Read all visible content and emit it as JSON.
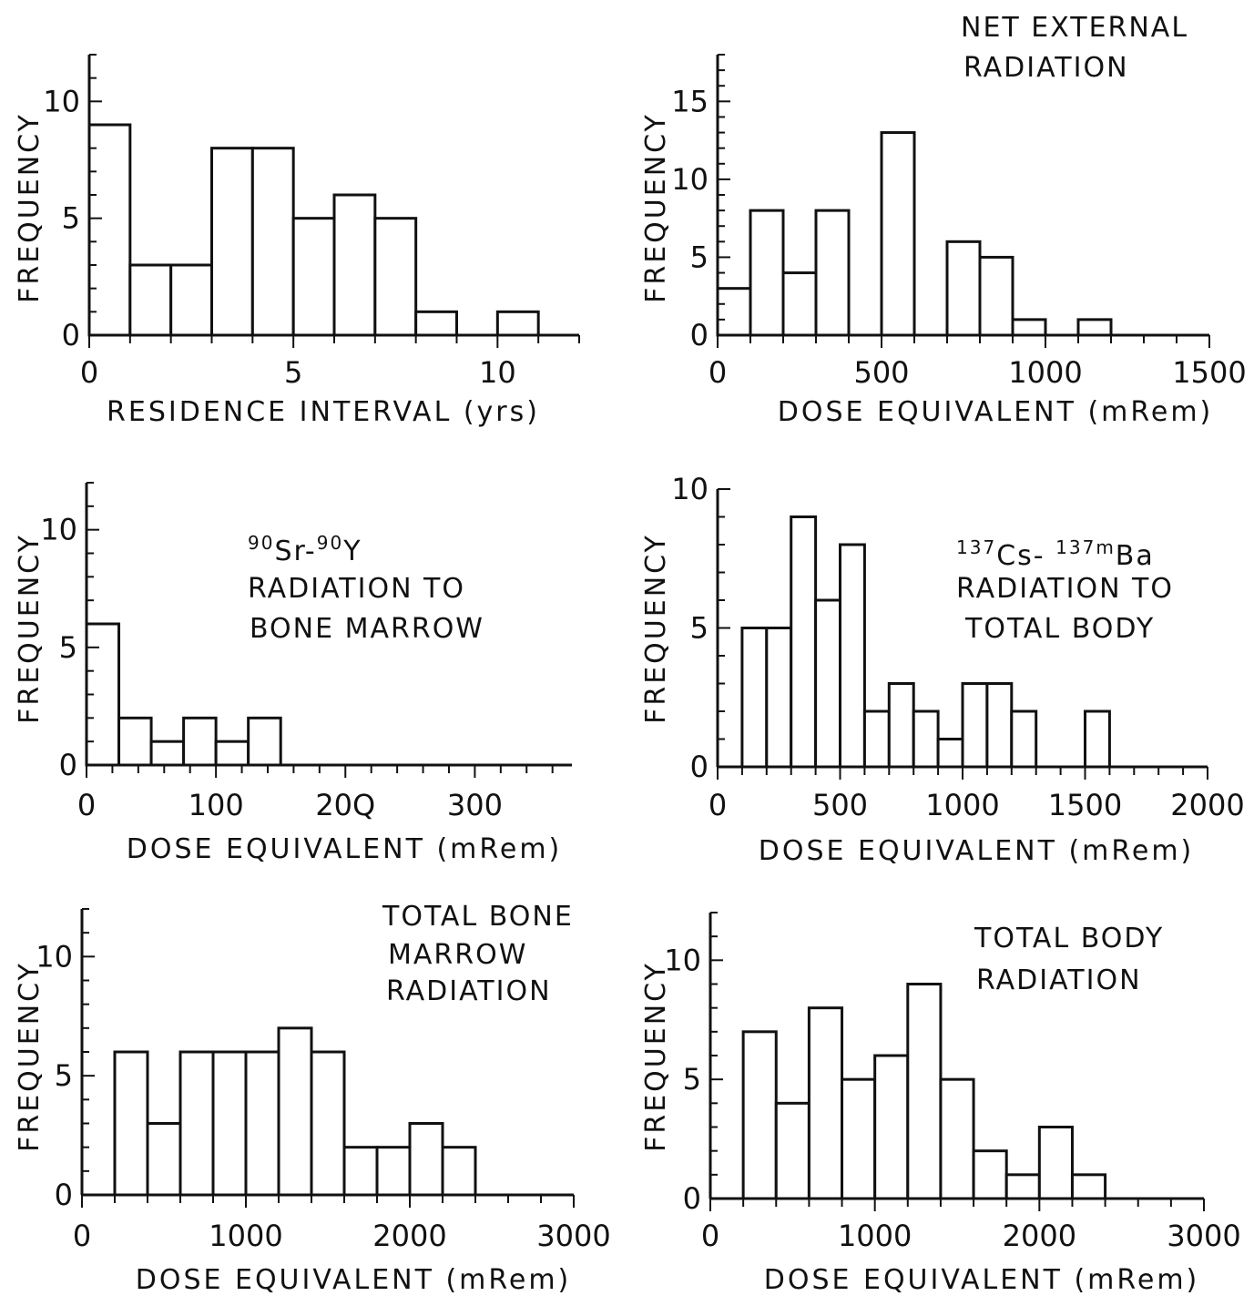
{
  "chart_data": [
    {
      "type": "bar",
      "title_lines": [],
      "xlabel": "RESIDENCE INTERVAL (yrs)",
      "ylabel": "FREQUENCY",
      "bin_edges": [
        0,
        1,
        2,
        3,
        4,
        5,
        6,
        7,
        8,
        9,
        10,
        11
      ],
      "values": [
        9,
        3,
        3,
        8,
        8,
        5,
        6,
        5,
        1,
        0,
        1
      ],
      "xlim": [
        0,
        12
      ],
      "ylim": [
        0,
        12
      ],
      "xticks": [
        0,
        5,
        10
      ],
      "xtick_labels": [
        "0",
        "5",
        "10"
      ],
      "yticks": [
        0,
        5,
        10
      ],
      "ytick_labels": [
        "0",
        "5",
        "10"
      ],
      "grid": false
    },
    {
      "type": "bar",
      "title_lines": [
        "NET EXTERNAL",
        "RADIATION"
      ],
      "xlabel": "DOSE  EQUIVALENT (mRem)",
      "ylabel": "FREQUENCY",
      "bin_edges": [
        0,
        100,
        200,
        300,
        400,
        500,
        600,
        700,
        800,
        900,
        1000,
        1100,
        1200
      ],
      "values": [
        3,
        8,
        4,
        8,
        0,
        13,
        0,
        6,
        5,
        1,
        0,
        1
      ],
      "xlim": [
        0,
        1500
      ],
      "ylim": [
        0,
        18
      ],
      "xticks": [
        0,
        500,
        1000,
        1500
      ],
      "xtick_labels": [
        "0",
        "500",
        "1000",
        "1500"
      ],
      "yticks": [
        0,
        5,
        10,
        15
      ],
      "ytick_labels": [
        "0",
        "5",
        "10",
        "15"
      ],
      "grid": false
    },
    {
      "type": "bar",
      "title_lines": [
        "RADIATION TO",
        "BONE MARROW"
      ],
      "title_isotopes": [
        {
          "mass": "90",
          "symbol": "Sr"
        },
        {
          "mass": "90",
          "symbol": "Y"
        }
      ],
      "xlabel": "DOSE EQUIVALENT (mRem)",
      "ylabel": "FREQUENCY",
      "bin_edges": [
        0,
        25,
        50,
        75,
        100,
        125,
        150
      ],
      "values": [
        6,
        2,
        1,
        2,
        1,
        2
      ],
      "xlim": [
        0,
        375
      ],
      "ylim": [
        0,
        12
      ],
      "xticks": [
        0,
        100,
        200,
        300
      ],
      "xtick_labels": [
        "0",
        "100",
        "20Q",
        "300"
      ],
      "yticks": [
        0,
        5,
        10
      ],
      "ytick_labels": [
        "0",
        "5",
        "10"
      ],
      "grid": false
    },
    {
      "type": "bar",
      "title_lines": [
        "RADIATION TO",
        "TOTAL BODY"
      ],
      "title_isotopes": [
        {
          "mass": "137",
          "symbol": "Cs"
        },
        {
          "mass": "137m",
          "symbol": "Ba"
        }
      ],
      "xlabel": "DOSE EQUIVALENT (mRem)",
      "ylabel": "FREQUENCY",
      "bin_edges": [
        100,
        200,
        300,
        400,
        500,
        600,
        700,
        800,
        900,
        1000,
        1100,
        1200,
        1300,
        1400,
        1500,
        1600
      ],
      "values": [
        5,
        5,
        9,
        6,
        8,
        2,
        3,
        2,
        1,
        3,
        3,
        2,
        0,
        0,
        2
      ],
      "xlim": [
        0,
        2000
      ],
      "ylim": [
        0,
        10
      ],
      "xticks": [
        0,
        500,
        1000,
        1500,
        2000
      ],
      "xtick_labels": [
        "0",
        "500",
        "1000",
        "1500",
        "2000"
      ],
      "yticks": [
        0,
        5,
        10
      ],
      "ytick_labels": [
        "0",
        "5",
        "10"
      ],
      "grid": false
    },
    {
      "type": "bar",
      "title_lines": [
        "TOTAL BONE",
        "MARROW",
        "RADIATION"
      ],
      "xlabel": "DOSE EQUIVALENT (mRem)",
      "ylabel": "FREQUENCY",
      "bin_edges": [
        200,
        400,
        600,
        800,
        1000,
        1200,
        1400,
        1600,
        1800,
        2000,
        2200,
        2400
      ],
      "values": [
        6,
        3,
        6,
        6,
        6,
        7,
        6,
        2,
        2,
        3,
        2
      ],
      "xlim": [
        0,
        3000
      ],
      "ylim": [
        0,
        12
      ],
      "xticks": [
        0,
        1000,
        2000,
        3000
      ],
      "xtick_labels": [
        "0",
        "1000",
        "2000",
        "3000"
      ],
      "yticks": [
        0,
        5,
        10
      ],
      "ytick_labels": [
        "0",
        "5",
        "10"
      ],
      "grid": false
    },
    {
      "type": "bar",
      "title_lines": [
        "TOTAL BODY",
        "RADIATION"
      ],
      "xlabel": "DOSE EQUIVALENT (mRem)",
      "ylabel": "FREQUENCY",
      "bin_edges": [
        200,
        400,
        600,
        800,
        1000,
        1200,
        1400,
        1600,
        1800,
        2000,
        2200,
        2400
      ],
      "values": [
        7,
        4,
        8,
        5,
        6,
        9,
        5,
        2,
        1,
        3,
        1
      ],
      "xlim": [
        0,
        3000
      ],
      "ylim": [
        0,
        12
      ],
      "xticks": [
        0,
        1000,
        2000,
        3000
      ],
      "xtick_labels": [
        "0",
        "1000",
        "2000",
        "3000"
      ],
      "yticks": [
        0,
        5,
        10
      ],
      "ytick_labels": [
        "0",
        "5",
        "10"
      ],
      "grid": false
    }
  ]
}
